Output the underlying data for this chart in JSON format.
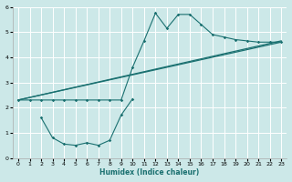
{
  "xlabel": "Humidex (Indice chaleur)",
  "bg_color": "#cce8e8",
  "grid_color": "#ffffff",
  "line_color": "#1a7070",
  "xlim": [
    -0.5,
    23.5
  ],
  "ylim": [
    0,
    6
  ],
  "xticks": [
    0,
    1,
    2,
    3,
    4,
    5,
    6,
    7,
    8,
    9,
    10,
    11,
    12,
    13,
    14,
    15,
    16,
    17,
    18,
    19,
    20,
    21,
    22,
    23
  ],
  "yticks": [
    0,
    1,
    2,
    3,
    4,
    5,
    6
  ],
  "line1_x": [
    0,
    1,
    2,
    3,
    4,
    5,
    6,
    7,
    8,
    9,
    10,
    11,
    12,
    13,
    14,
    15,
    16,
    17,
    18,
    19,
    20,
    21,
    22,
    23
  ],
  "line1_y": [
    2.3,
    2.3,
    2.3,
    2.3,
    2.3,
    2.3,
    2.3,
    2.3,
    2.3,
    2.3,
    3.6,
    4.65,
    5.75,
    5.15,
    5.7,
    5.7,
    5.3,
    4.9,
    4.8,
    4.7,
    4.65,
    4.6,
    4.6,
    4.6
  ],
  "line2_x": [
    0,
    23
  ],
  "line2_y": [
    2.3,
    4.6
  ],
  "line3_x": [
    0,
    23
  ],
  "line3_y": [
    2.3,
    4.6
  ],
  "line2_mid_x": 10,
  "line2_mid_y": 3.3,
  "line3_mid_x": 10,
  "line3_mid_y": 2.7,
  "line4_x": [
    2,
    3,
    4,
    5,
    6,
    7,
    8,
    9,
    10
  ],
  "line4_y": [
    1.6,
    0.8,
    0.55,
    0.5,
    0.6,
    0.5,
    0.7,
    1.7,
    2.35
  ]
}
